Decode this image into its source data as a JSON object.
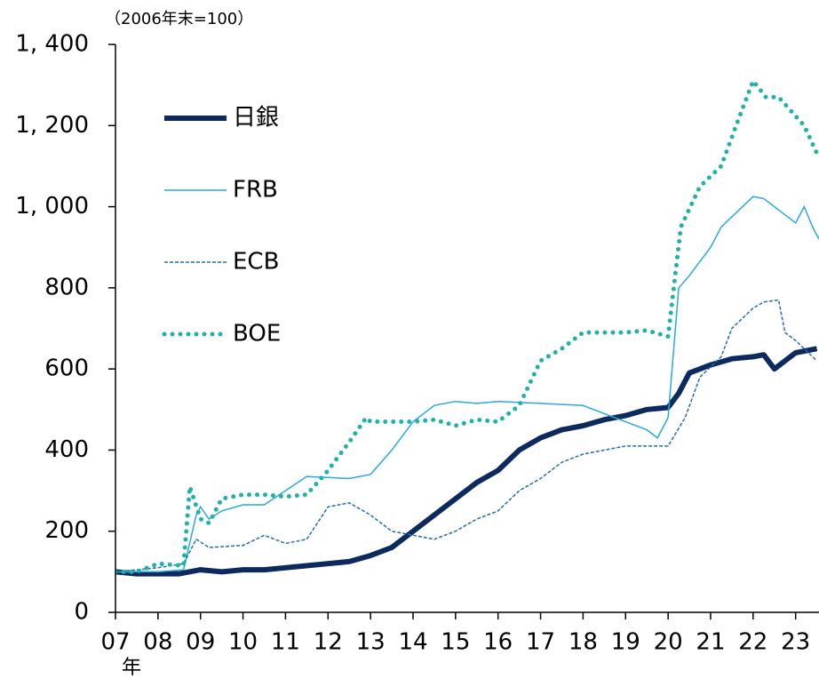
{
  "chart_data": {
    "type": "line",
    "subtitle": "（2006年末=100）",
    "x_label": "年",
    "xlim": [
      2007,
      2023.55
    ],
    "xticks": [
      {
        "value": 2007,
        "label": "07"
      },
      {
        "value": 2008,
        "label": "08"
      },
      {
        "value": 2009,
        "label": "09"
      },
      {
        "value": 2010,
        "label": "10"
      },
      {
        "value": 2011,
        "label": "11"
      },
      {
        "value": 2012,
        "label": "12"
      },
      {
        "value": 2013,
        "label": "13"
      },
      {
        "value": 2014,
        "label": "14"
      },
      {
        "value": 2015,
        "label": "15"
      },
      {
        "value": 2016,
        "label": "16"
      },
      {
        "value": 2017,
        "label": "17"
      },
      {
        "value": 2018,
        "label": "18"
      },
      {
        "value": 2019,
        "label": "19"
      },
      {
        "value": 2020,
        "label": "20"
      },
      {
        "value": 2021,
        "label": "21"
      },
      {
        "value": 2022,
        "label": "22"
      },
      {
        "value": 2023,
        "label": "23"
      }
    ],
    "ylim": [
      0,
      1400
    ],
    "yticks": [
      0,
      200,
      400,
      600,
      800,
      {
        "value": 1000,
        "label": "1, 000"
      },
      {
        "value": 1200,
        "label": "1, 200"
      },
      {
        "value": 1400,
        "label": "1, 400"
      }
    ],
    "legend": "upper left",
    "series": [
      {
        "name": "日銀",
        "color": "#0d2a5e",
        "line_style": "thick",
        "x": [
          2007,
          2007.5,
          2008,
          2008.5,
          2009,
          2009.5,
          2010,
          2010.5,
          2011,
          2011.5,
          2012,
          2012.5,
          2013,
          2013.5,
          2014,
          2014.5,
          2015,
          2015.5,
          2016,
          2016.5,
          2017,
          2017.5,
          2018,
          2018.5,
          2019,
          2019.5,
          2020,
          2020.25,
          2020.5,
          2021,
          2021.5,
          2022,
          2022.25,
          2022.5,
          2023,
          2023.5
        ],
        "values": [
          100,
          95,
          95,
          95,
          105,
          100,
          105,
          105,
          110,
          115,
          120,
          125,
          140,
          160,
          200,
          240,
          280,
          320,
          350,
          400,
          430,
          450,
          460,
          475,
          485,
          500,
          505,
          540,
          590,
          610,
          625,
          630,
          635,
          600,
          640,
          650
        ]
      },
      {
        "name": "FRB",
        "color": "#2aa8e0",
        "line_style": "solid",
        "x": [
          2007,
          2008,
          2008.6,
          2008.9,
          2009,
          2009.2,
          2009.5,
          2010,
          2010.5,
          2011,
          2011.5,
          2012.5,
          2013,
          2013.5,
          2014,
          2014.5,
          2015,
          2015.5,
          2016,
          2017,
          2018,
          2018.5,
          2019.5,
          2019.75,
          2020,
          2020.25,
          2020.5,
          2021,
          2021.25,
          2021.75,
          2022,
          2022.25,
          2022.75,
          2023,
          2023.2,
          2023.4,
          2023.55
        ],
        "values": [
          100,
          100,
          105,
          240,
          260,
          230,
          250,
          265,
          265,
          300,
          335,
          330,
          340,
          400,
          470,
          510,
          520,
          515,
          520,
          515,
          510,
          490,
          450,
          430,
          480,
          800,
          830,
          900,
          950,
          1000,
          1025,
          1020,
          980,
          960,
          1000,
          950,
          920
        ]
      },
      {
        "name": "ECB",
        "color": "#1f6fb4",
        "line_style": "dashed",
        "x": [
          2007,
          2008,
          2008.6,
          2008.9,
          2009.2,
          2010,
          2010.5,
          2011,
          2011.5,
          2012,
          2012.5,
          2013,
          2013.5,
          2014,
          2014.5,
          2015,
          2015.5,
          2016,
          2016.5,
          2017,
          2017.5,
          2018,
          2018.5,
          2019,
          2020,
          2020.4,
          2020.75,
          2021.25,
          2021.5,
          2022,
          2022.25,
          2022.6,
          2022.75,
          2023,
          2023.5
        ],
        "values": [
          100,
          110,
          120,
          180,
          160,
          165,
          190,
          170,
          180,
          260,
          270,
          240,
          200,
          190,
          180,
          200,
          230,
          250,
          300,
          330,
          370,
          390,
          400,
          410,
          410,
          480,
          580,
          630,
          700,
          750,
          765,
          770,
          690,
          670,
          620
        ]
      },
      {
        "name": "BOE",
        "color": "#20b2aa",
        "line_style": "dotted",
        "x": [
          2007,
          2007.5,
          2008,
          2008.6,
          2008.75,
          2009,
          2009.2,
          2009.5,
          2010,
          2010.5,
          2011,
          2011.5,
          2012,
          2012.5,
          2012.9,
          2013,
          2014,
          2014.5,
          2015,
          2015.5,
          2016,
          2016.5,
          2017,
          2017.5,
          2018,
          2019,
          2019.5,
          2020,
          2020.3,
          2020.75,
          2021.25,
          2021.6,
          2022,
          2022.3,
          2022.6,
          2023.2,
          2023.55
        ],
        "values": [
          100,
          100,
          120,
          115,
          310,
          230,
          220,
          280,
          290,
          290,
          285,
          290,
          350,
          420,
          480,
          470,
          470,
          475,
          460,
          475,
          470,
          510,
          620,
          650,
          690,
          690,
          695,
          680,
          950,
          1050,
          1100,
          1200,
          1310,
          1270,
          1270,
          1200,
          1120
        ]
      }
    ]
  }
}
